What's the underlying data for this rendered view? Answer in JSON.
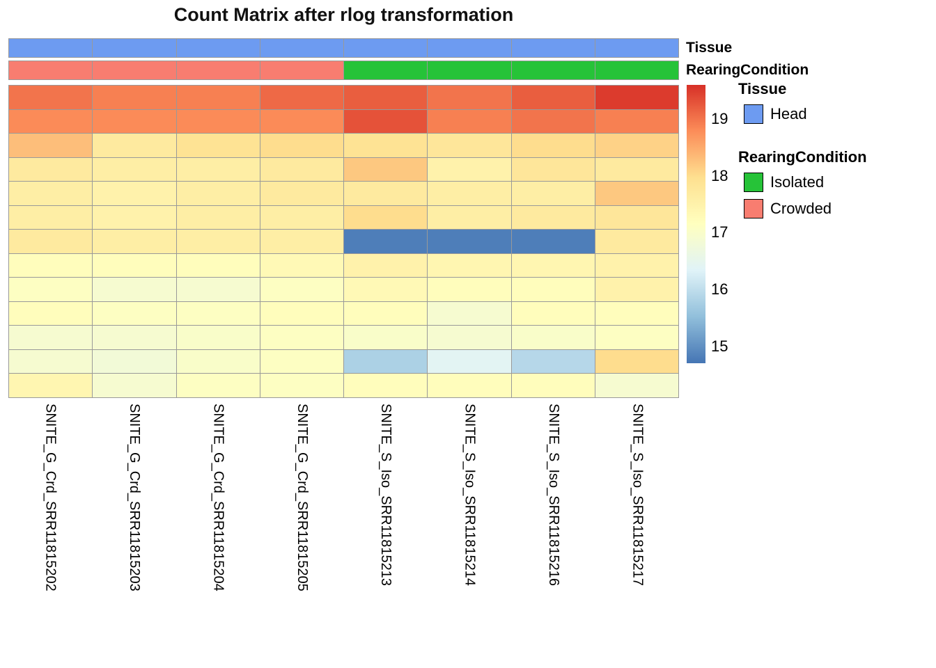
{
  "title": "Count Matrix after rlog transformation",
  "annotations": {
    "tissue_label": "Tissue",
    "rearing_label": "RearingCondition",
    "tissue_values": [
      "Head",
      "Head",
      "Head",
      "Head",
      "Head",
      "Head",
      "Head",
      "Head"
    ],
    "rearing_values": [
      "Crowded",
      "Crowded",
      "Crowded",
      "Crowded",
      "Isolated",
      "Isolated",
      "Isolated",
      "Isolated"
    ],
    "colors": {
      "Head": "#6d9bf1",
      "Isolated": "#26c338",
      "Crowded": "#f87d70"
    }
  },
  "legend": {
    "tissue_title": "Tissue",
    "tissue_items": [
      {
        "label": "Head",
        "color": "#6d9bf1"
      }
    ],
    "rearing_title": "RearingCondition",
    "rearing_items": [
      {
        "label": "Isolated",
        "color": "#26c338"
      },
      {
        "label": "Crowded",
        "color": "#f87d70"
      }
    ]
  },
  "chart_data": {
    "type": "heatmap",
    "title": "Count Matrix after rlog transformation",
    "columns": [
      "SNITE_G_Crd_SRR11815202",
      "SNITE_G_Crd_SRR11815203",
      "SNITE_G_Crd_SRR11815204",
      "SNITE_G_Crd_SRR11815205",
      "SNITE_S_Iso_SRR11815213",
      "SNITE_S_Iso_SRR11815214",
      "SNITE_S_Iso_SRR11815216",
      "SNITE_S_Iso_SRR11815217"
    ],
    "values": [
      [
        19.0,
        18.9,
        18.9,
        19.1,
        19.2,
        19.0,
        19.2,
        19.5
      ],
      [
        18.8,
        18.8,
        18.8,
        18.8,
        19.3,
        18.9,
        19.0,
        18.9
      ],
      [
        18.3,
        17.7,
        17.9,
        18.0,
        17.9,
        17.8,
        18.0,
        18.1
      ],
      [
        17.7,
        17.6,
        17.6,
        17.7,
        18.2,
        17.5,
        17.8,
        17.7
      ],
      [
        17.6,
        17.5,
        17.6,
        17.7,
        17.7,
        17.6,
        17.6,
        18.2
      ],
      [
        17.6,
        17.5,
        17.6,
        17.6,
        18.0,
        17.6,
        17.7,
        17.8
      ],
      [
        17.7,
        17.6,
        17.6,
        17.6,
        14.8,
        14.8,
        14.8,
        17.7
      ],
      [
        17.2,
        17.2,
        17.2,
        17.3,
        17.5,
        17.4,
        17.4,
        17.5
      ],
      [
        17.1,
        16.9,
        16.9,
        17.1,
        17.3,
        17.2,
        17.2,
        17.5
      ],
      [
        17.2,
        17.1,
        17.1,
        17.2,
        17.2,
        16.9,
        17.2,
        17.2
      ],
      [
        16.9,
        16.9,
        17.0,
        17.1,
        17.0,
        16.9,
        17.0,
        17.1
      ],
      [
        16.9,
        16.8,
        17.0,
        17.1,
        15.8,
        16.4,
        15.9,
        18.0
      ],
      [
        17.4,
        16.9,
        17.1,
        17.1,
        17.2,
        17.2,
        17.2,
        16.9
      ]
    ],
    "col_annotations": {
      "Tissue": [
        "Head",
        "Head",
        "Head",
        "Head",
        "Head",
        "Head",
        "Head",
        "Head"
      ],
      "RearingCondition": [
        "Crowded",
        "Crowded",
        "Crowded",
        "Crowded",
        "Isolated",
        "Isolated",
        "Isolated",
        "Isolated"
      ]
    },
    "scale": {
      "min": 14.7,
      "max": 19.6,
      "ticks": [
        19,
        18,
        17,
        16,
        15
      ],
      "palette": [
        "#4575b4",
        "#91bfdb",
        "#e0f3f8",
        "#ffffbf",
        "#fee090",
        "#fc8d59",
        "#d73027"
      ]
    },
    "legend_position": "right",
    "grid": true
  }
}
